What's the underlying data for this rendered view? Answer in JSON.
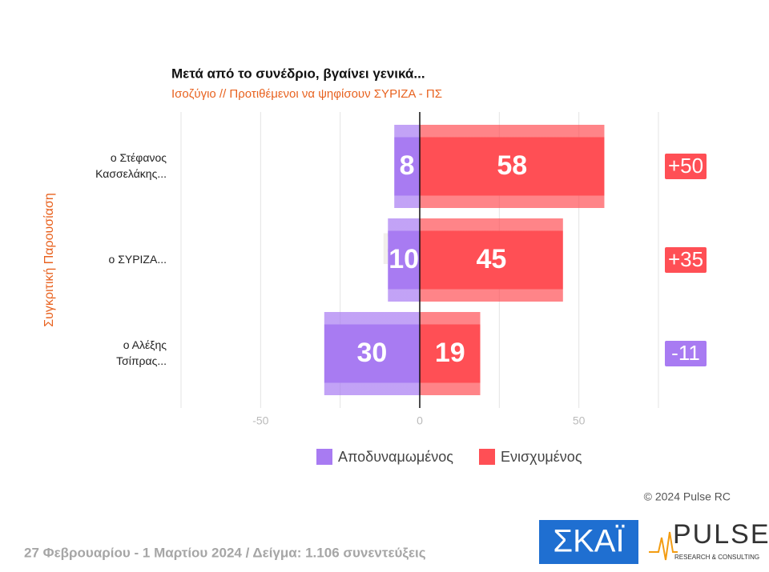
{
  "chart_data": {
    "type": "diverging_bar",
    "title": "Μετά από το συνέδριο, βγαίνει γενικά...",
    "subtitle": "Ισοζύγιο // Προτιθέμενοι να ψηφίσουν ΣΥΡΙΖΑ - ΠΣ",
    "y_axis_label": "Συγκριτική Παρουσίαση",
    "categories": [
      "ο Στέφανος\nΚασσελάκης...",
      "ο ΣΥΡΙΖΑ...",
      "ο Αλέξης\nΤσίπρας..."
    ],
    "series": [
      {
        "name": "Αποδυναμωμένος",
        "color": "#a87bf2",
        "values": [
          -8,
          -10,
          -30
        ],
        "value_labels": [
          "8",
          "10",
          "30"
        ]
      },
      {
        "name": "Ενισχυμένος",
        "color": "#ff4f55",
        "values": [
          58,
          45,
          19
        ]
      }
    ],
    "net": {
      "values": [
        50,
        35,
        -11
      ],
      "value_labels": [
        "+50",
        "+35",
        "-11"
      ]
    },
    "xlim": [
      -75,
      75
    ],
    "xticks": [
      -50,
      0,
      50
    ],
    "minor_xticks": [
      -75,
      -25,
      25,
      75
    ],
    "grid": true,
    "copyright": "© 2024 Pulse RC",
    "footer": "27 Φεβρουαρίου - 1 Μαρτίου 2024  /  Δείγμα:  1.106 συνεντεύξεις",
    "logos": {
      "skai": "ΣΚΑΪ",
      "pulse": "PULSE",
      "pulse_sub": "RESEARCH & CONSULTING"
    }
  }
}
